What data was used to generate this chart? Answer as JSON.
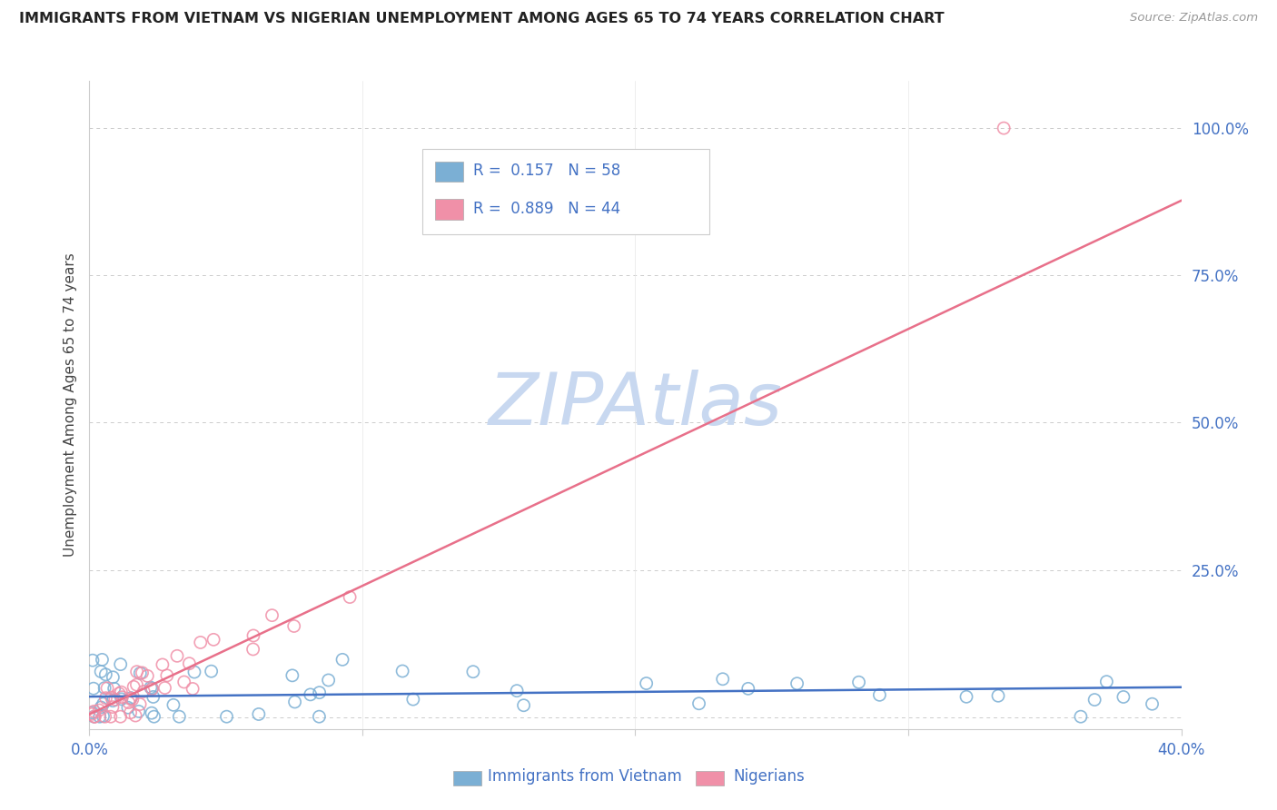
{
  "title": "IMMIGRANTS FROM VIETNAM VS NIGERIAN UNEMPLOYMENT AMONG AGES 65 TO 74 YEARS CORRELATION CHART",
  "source": "Source: ZipAtlas.com",
  "ylabel": "Unemployment Among Ages 65 to 74 years",
  "series1_name": "Immigrants from Vietnam",
  "series1_color": "#7bafd4",
  "series2_name": "Nigerians",
  "series2_color": "#f090a8",
  "trend1_color": "#4472c4",
  "trend2_color": "#e8708a",
  "axis_color": "#4472c4",
  "title_color": "#222222",
  "grid_color": "#cccccc",
  "background_color": "#ffffff",
  "watermark": "ZIPAtlas",
  "watermark_color": "#c8d8f0",
  "legend_R1": "R =  0.157",
  "legend_N1": "N = 58",
  "legend_R2": "R =  0.889",
  "legend_N2": "N = 44",
  "xlim": [
    0.0,
    0.4
  ],
  "ylim": [
    -0.02,
    1.08
  ],
  "yticks": [
    0.0,
    0.25,
    0.5,
    0.75,
    1.0
  ],
  "ytick_labels": [
    "",
    "25.0%",
    "50.0%",
    "75.0%",
    "100.0%"
  ],
  "xtick_labels": [
    "0.0%",
    "",
    "",
    "",
    "40.0%"
  ],
  "trend1_slope": 0.04,
  "trend1_intercept": 0.035,
  "trend2_slope": 2.18,
  "trend2_intercept": 0.005
}
